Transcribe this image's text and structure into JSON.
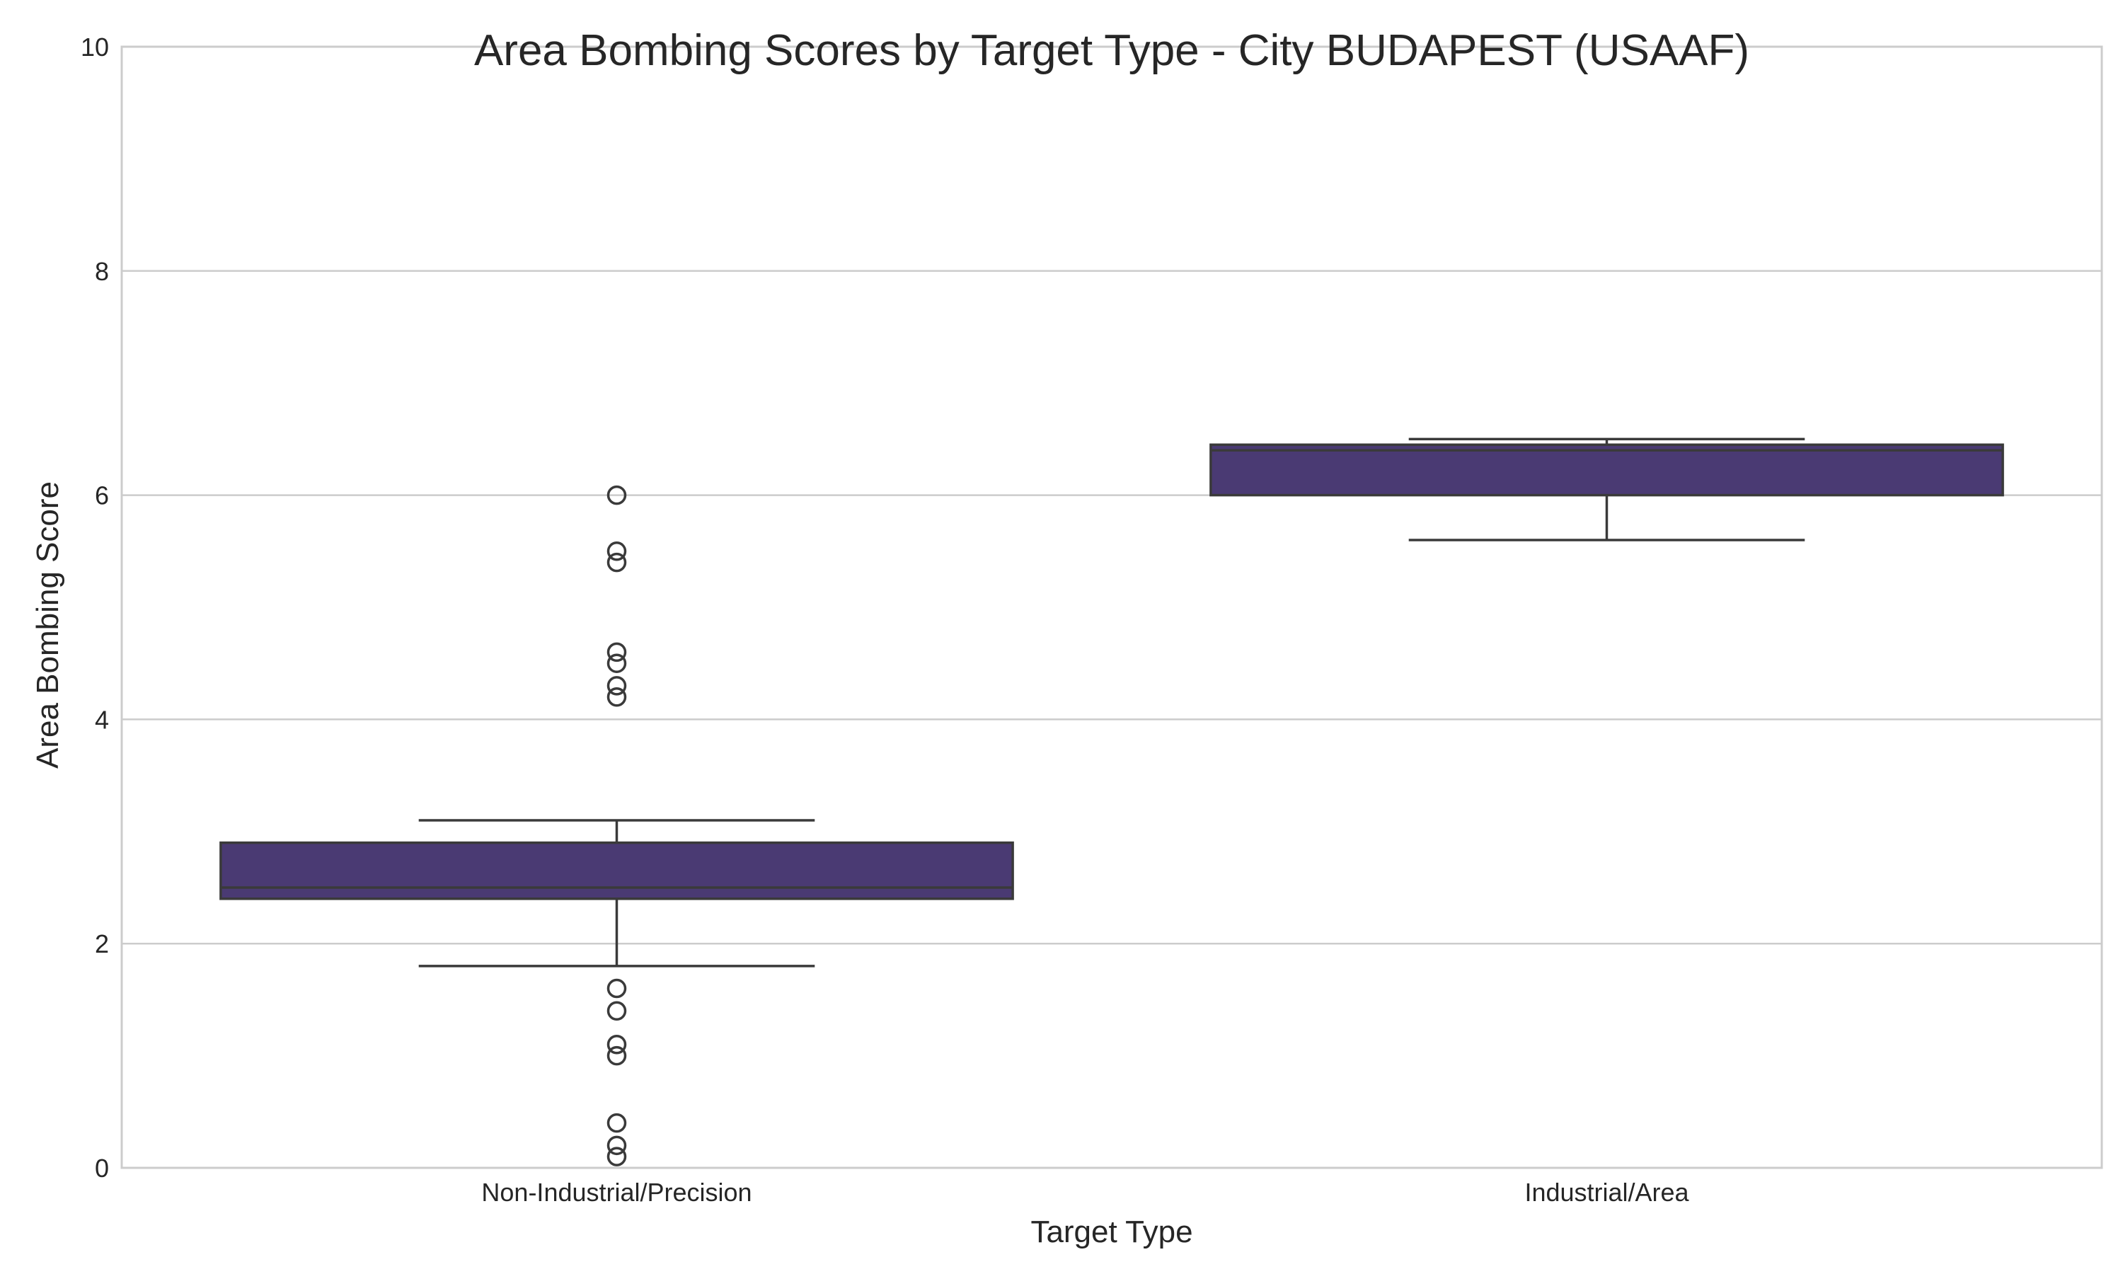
{
  "chart_data": {
    "type": "box",
    "title": "Area Bombing Scores by Target Type - City BUDAPEST (USAAF)",
    "xlabel": "Target Type",
    "ylabel": "Area Bombing Score",
    "ylim": [
      0,
      10
    ],
    "yticks": [
      0,
      2,
      4,
      6,
      8,
      10
    ],
    "grid": true,
    "categories": [
      "Non-Industrial/Precision",
      "Industrial/Area"
    ],
    "boxes": [
      {
        "category": "Non-Industrial/Precision",
        "whisker_low": 1.8,
        "q1": 2.4,
        "median": 2.5,
        "q3": 2.9,
        "whisker_high": 3.1,
        "outliers": [
          6.0,
          5.5,
          5.4,
          4.6,
          4.5,
          4.3,
          4.2,
          1.6,
          1.4,
          1.1,
          1.0,
          0.4,
          0.2,
          0.1
        ]
      },
      {
        "category": "Industrial/Area",
        "whisker_low": 5.6,
        "q1": 6.0,
        "median": 6.4,
        "q3": 6.45,
        "whisker_high": 6.5,
        "outliers": []
      }
    ],
    "colors": {
      "box_fill": "#4a3a73",
      "box_edge": "#3a3a3a",
      "grid": "#cccccc",
      "spine": "#cccccc",
      "text": "#262626"
    }
  }
}
